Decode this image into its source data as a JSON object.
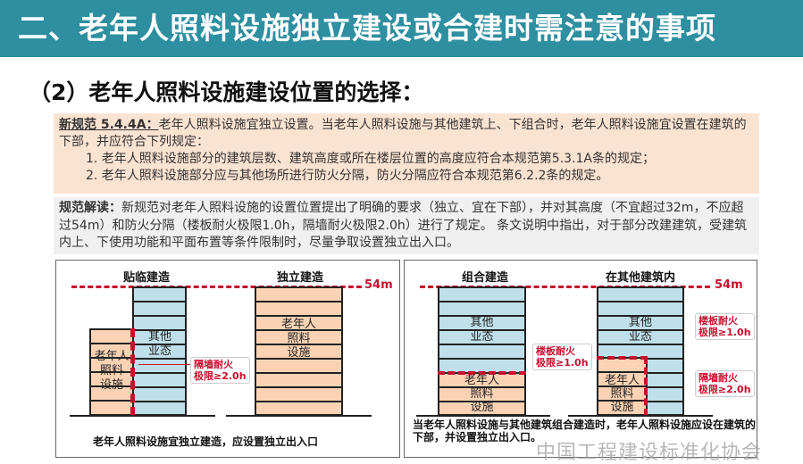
{
  "header": {
    "title": "二、老年人照料设施独立建设或合建时需注意的事项"
  },
  "subtitle": "（2）老年人照料设施建设位置的选择：",
  "spec": {
    "label": "新规范  5.4.4A：",
    "text": "老年人照料设施宜独立设置。当老年人照料设施与其他建筑上、下组合时，老年人照料设施宜设置在建筑的下部，并应符合下列规定：",
    "items": [
      "1. 老年人照料设施部分的建筑层数、建筑高度或所在楼层位置的高度应符合本规范第5.3.1A条的规定；",
      "2. 老年人照料设施部分应与其他场所进行防火分隔，防火分隔应符合本规范第6.2.2条的规定。"
    ]
  },
  "interpretation": {
    "label": "规范解读：",
    "text": "新规范对老年人照料设施的设置位置提出了明确的要求（独立、宜在下部），并对其高度（不宜超过32m，不应超过54m）和防火分隔（楼板耐火极限1.0h，隔墙耐火极限2.0h）进行了规定。 条文说明中指出，对于部分改建建筑，受建筑内上、下使用功能和平面布置等条件限制时，尽量争取设置独立出入口。"
  },
  "diagrams": {
    "height_label": "54m",
    "elderly": "老年人\n照料\n设施",
    "e1": "老年人",
    "e2": "照料",
    "e3": "设施",
    "o1": "其他",
    "o2": "业态",
    "wall_note": [
      "隔墙耐火",
      "极限≥2.0h"
    ],
    "floor_note": [
      "楼板耐火",
      "极限≥1.0h"
    ],
    "left": {
      "t1": "贴临建造",
      "t2": "独立建造",
      "caption": "老年人照料设施宜独立建造，应设置独立出入口"
    },
    "right": {
      "t1": "组合建造",
      "t2": "在其他建筑内",
      "caption1": "当老年人照料设施与其他建筑组合建造时，老年人照料设施应设在建筑的下部",
      "caption2": "，并设置独立出入口。"
    }
  },
  "watermark": "中国工程建设标准化协会",
  "colors": {
    "header": "#2e8fa0",
    "spec_bg": "#fbe3d2",
    "accent": "#c8102e",
    "other_use": "#bfe0ea",
    "elderly_use": "#fbd3b4"
  }
}
